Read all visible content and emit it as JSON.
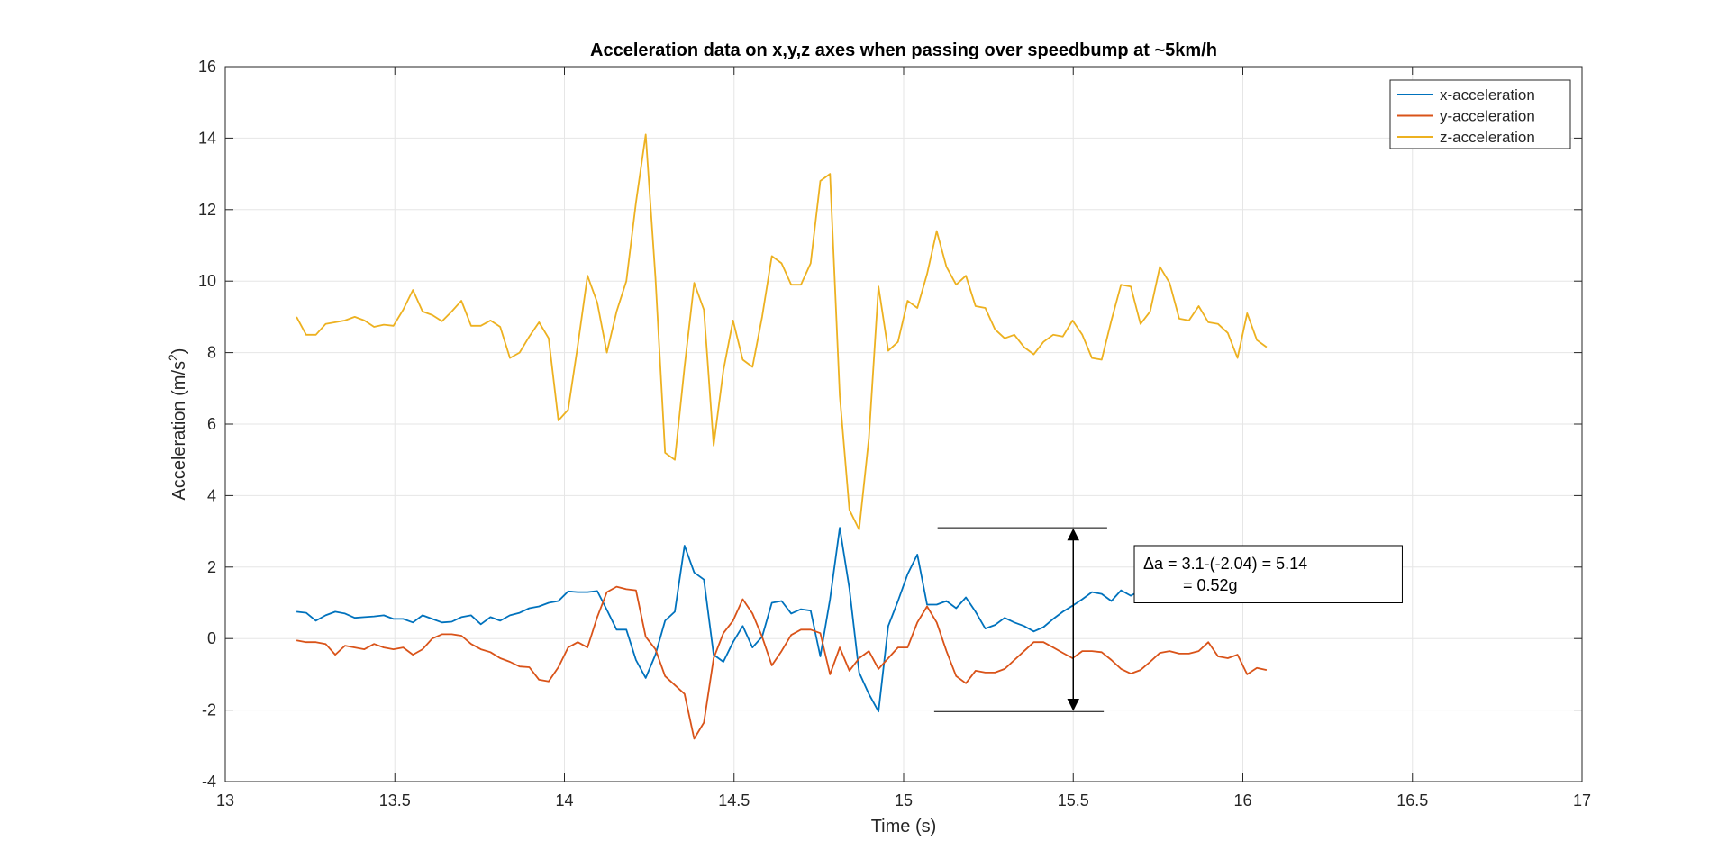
{
  "chart_data": {
    "type": "line",
    "title": "Acceleration data on x,y,z axes when passing over speedbump at ~5km/h",
    "xlabel": "Time (s)",
    "ylabel_main": "Acceleration (m/s",
    "ylabel_sup": "2",
    "ylabel_close": ")",
    "xlim": [
      13,
      17
    ],
    "ylim": [
      -4,
      16
    ],
    "xticks": [
      13,
      13.5,
      14,
      14.5,
      15,
      15.5,
      16,
      16.5,
      17
    ],
    "xtick_labels": [
      "13",
      "13.5",
      "14",
      "14.5",
      "15",
      "15.5",
      "16",
      "16.5",
      "17"
    ],
    "yticks": [
      -4,
      -2,
      0,
      2,
      4,
      6,
      8,
      10,
      12,
      14,
      16
    ],
    "ytick_labels": [
      "-4",
      "-2",
      "0",
      "2",
      "4",
      "6",
      "8",
      "10",
      "12",
      "14",
      "16"
    ],
    "grid": true,
    "legend_position": "top-right",
    "x_start": 13.21,
    "x_step": 0.0286,
    "series": [
      {
        "name": "x-acceleration",
        "color": "#0072BD",
        "values": [
          0.75,
          0.72,
          0.5,
          0.65,
          0.75,
          0.7,
          0.58,
          0.6,
          0.62,
          0.65,
          0.55,
          0.55,
          0.45,
          0.65,
          0.55,
          0.45,
          0.47,
          0.6,
          0.65,
          0.4,
          0.6,
          0.5,
          0.65,
          0.72,
          0.85,
          0.9,
          1.0,
          1.05,
          1.32,
          1.3,
          1.3,
          1.33,
          0.8,
          0.25,
          0.25,
          -0.6,
          -1.1,
          -0.45,
          0.5,
          0.75,
          2.6,
          1.85,
          1.65,
          -0.45,
          -0.65,
          -0.1,
          0.35,
          -0.25,
          0.05,
          1.0,
          1.05,
          0.7,
          0.82,
          0.78,
          -0.5,
          1.1,
          3.1,
          1.4,
          -0.95,
          -1.55,
          -2.04,
          0.35,
          1.05,
          1.8,
          2.35,
          0.95,
          0.95,
          1.05,
          0.85,
          1.15,
          0.75,
          0.28,
          0.38,
          0.58,
          0.45,
          0.35,
          0.2,
          0.32,
          0.55,
          0.75,
          0.92,
          1.1,
          1.3,
          1.25,
          1.05,
          1.35,
          1.2,
          1.35,
          1.4,
          1.3,
          1.45,
          1.7,
          1.78,
          1.42,
          1.38,
          1.35,
          1.55,
          1.62,
          1.4,
          1.35,
          1.3
        ]
      },
      {
        "name": "y-acceleration",
        "color": "#D95319",
        "values": [
          -0.05,
          -0.1,
          -0.1,
          -0.15,
          -0.45,
          -0.2,
          -0.25,
          -0.3,
          -0.15,
          -0.25,
          -0.3,
          -0.25,
          -0.45,
          -0.3,
          0.0,
          0.12,
          0.12,
          0.08,
          -0.15,
          -0.3,
          -0.38,
          -0.55,
          -0.65,
          -0.78,
          -0.8,
          -1.15,
          -1.2,
          -0.8,
          -0.25,
          -0.1,
          -0.25,
          0.6,
          1.3,
          1.45,
          1.38,
          1.35,
          0.05,
          -0.3,
          -1.05,
          -1.3,
          -1.55,
          -2.8,
          -2.35,
          -0.55,
          0.15,
          0.5,
          1.1,
          0.7,
          0.05,
          -0.75,
          -0.35,
          0.1,
          0.25,
          0.25,
          0.15,
          -1.0,
          -0.25,
          -0.9,
          -0.55,
          -0.35,
          -0.85,
          -0.55,
          -0.25,
          -0.25,
          0.45,
          0.9,
          0.45,
          -0.35,
          -1.05,
          -1.25,
          -0.9,
          -0.95,
          -0.95,
          -0.85,
          -0.6,
          -0.35,
          -0.1,
          -0.1,
          -0.25,
          -0.4,
          -0.55,
          -0.35,
          -0.35,
          -0.38,
          -0.6,
          -0.85,
          -0.98,
          -0.88,
          -0.65,
          -0.4,
          -0.35,
          -0.42,
          -0.42,
          -0.35,
          -0.1,
          -0.5,
          -0.55,
          -0.45,
          -1.0,
          -0.82,
          -0.88
        ]
      },
      {
        "name": "z-acceleration",
        "color": "#EDB120",
        "values": [
          9.0,
          8.5,
          8.5,
          8.8,
          8.85,
          8.9,
          9.0,
          8.9,
          8.72,
          8.78,
          8.75,
          9.2,
          9.75,
          9.15,
          9.05,
          8.88,
          9.15,
          9.45,
          8.75,
          8.75,
          8.9,
          8.72,
          7.85,
          8.0,
          8.45,
          8.85,
          8.4,
          6.1,
          6.4,
          8.2,
          10.15,
          9.4,
          8.0,
          9.15,
          10.0,
          12.2,
          14.1,
          10.1,
          5.2,
          5.0,
          7.6,
          9.95,
          9.2,
          5.4,
          7.5,
          8.9,
          7.8,
          7.6,
          9.0,
          10.7,
          10.5,
          9.9,
          9.9,
          10.5,
          12.8,
          13.0,
          6.8,
          3.6,
          3.05,
          5.6,
          9.85,
          8.05,
          8.3,
          9.45,
          9.25,
          10.2,
          11.4,
          10.4,
          9.9,
          10.15,
          9.3,
          9.25,
          8.65,
          8.4,
          8.5,
          8.15,
          7.95,
          8.3,
          8.5,
          8.45,
          8.9,
          8.5,
          7.85,
          7.8,
          8.9,
          9.9,
          9.85,
          8.8,
          9.15,
          10.4,
          9.95,
          8.95,
          8.9,
          9.3,
          8.85,
          8.8,
          8.55,
          7.85,
          9.1,
          8.35,
          8.15
        ]
      }
    ],
    "annotation": {
      "line1": "Δa = 3.1-(-2.04) = 5.14",
      "line2": "= 0.52g",
      "upper_ref_y": 3.1,
      "lower_ref_y": -2.04,
      "upper_ref_x": [
        15.1,
        15.6
      ],
      "lower_ref_x": [
        15.09,
        15.59
      ],
      "arrow_x": 15.5,
      "box_x": [
        15.68,
        16.47
      ],
      "box_y": [
        1.0,
        2.6
      ],
      "color": "#000000"
    }
  }
}
